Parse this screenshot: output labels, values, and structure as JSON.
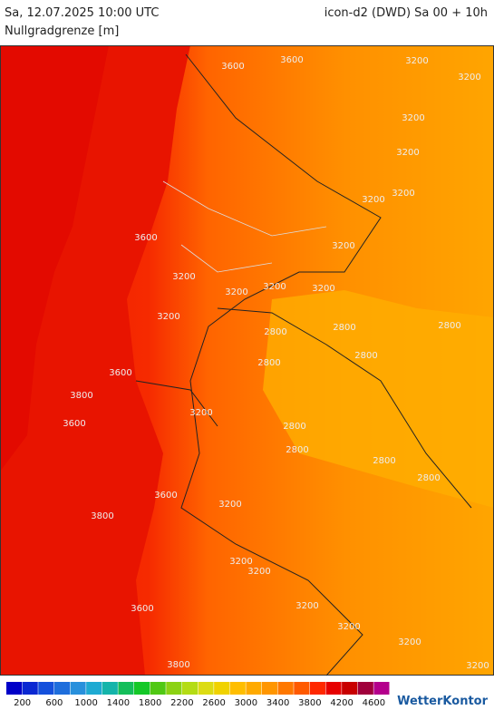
{
  "header": {
    "title": "Sa, 12.07.2025 10:00 UTC",
    "model": "icon-d2 (DWD) Sa 00 + 10h",
    "variable": "Nullgradgrenze [m]"
  },
  "map": {
    "contour_labels": [
      "3600",
      "3600",
      "3200",
      "3200",
      "3200",
      "3200",
      "3200",
      "3200",
      "3200",
      "3600",
      "3200",
      "3200",
      "3200",
      "3200",
      "3200",
      "2800",
      "2800",
      "2800",
      "2800",
      "2800",
      "3600",
      "3800",
      "3600",
      "3200",
      "2800",
      "2800",
      "2800",
      "2800",
      "3600",
      "3200",
      "3800",
      "3200",
      "3200",
      "3200",
      "3600",
      "3200",
      "3200",
      "3800",
      "3200"
    ]
  },
  "legend": {
    "colors": [
      "#0000c8",
      "#0a28d2",
      "#1450dc",
      "#1e6edc",
      "#2890dc",
      "#1eaad2",
      "#14b4aa",
      "#14be5a",
      "#14c828",
      "#50c814",
      "#8cd214",
      "#b4dc14",
      "#dcdc14",
      "#f0d200",
      "#ffbe00",
      "#ffaa00",
      "#ff9600",
      "#ff7800",
      "#ff5a00",
      "#ff2800",
      "#e60000",
      "#c80000",
      "#a0003c",
      "#b4008c"
    ],
    "labels": [
      200,
      600,
      1000,
      1400,
      1800,
      2200,
      2600,
      3000,
      3400,
      3800,
      4200,
      4600
    ]
  },
  "brand": "WetterKontor"
}
